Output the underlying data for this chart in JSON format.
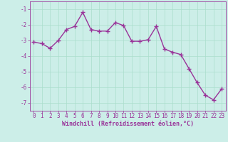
{
  "x": [
    0,
    1,
    2,
    3,
    4,
    5,
    6,
    7,
    8,
    9,
    10,
    11,
    12,
    13,
    14,
    15,
    16,
    17,
    18,
    19,
    20,
    21,
    22,
    23
  ],
  "y": [
    -3.1,
    -3.2,
    -3.5,
    -3.0,
    -2.3,
    -2.1,
    -1.2,
    -2.3,
    -2.4,
    -2.4,
    -1.85,
    -2.05,
    -3.05,
    -3.05,
    -2.95,
    -2.1,
    -3.55,
    -3.75,
    -3.9,
    -4.8,
    -5.7,
    -6.5,
    -6.8,
    -6.1
  ],
  "line_color": "#993399",
  "marker": "+",
  "marker_size": 4,
  "linewidth": 1.0,
  "bg_color": "#cceee8",
  "grid_color": "#aaddcc",
  "xlabel": "Windchill (Refroidissement éolien,°C)",
  "xlabel_color": "#993399",
  "tick_color": "#993399",
  "xlim": [
    -0.5,
    23.5
  ],
  "ylim": [
    -7.5,
    -0.5
  ],
  "yticks": [
    -7,
    -6,
    -5,
    -4,
    -3,
    -2,
    -1
  ],
  "xticks": [
    0,
    1,
    2,
    3,
    4,
    5,
    6,
    7,
    8,
    9,
    10,
    11,
    12,
    13,
    14,
    15,
    16,
    17,
    18,
    19,
    20,
    21,
    22,
    23
  ],
  "spine_color": "#993399",
  "tick_fontsize": 5.5,
  "xlabel_fontsize": 6.0
}
